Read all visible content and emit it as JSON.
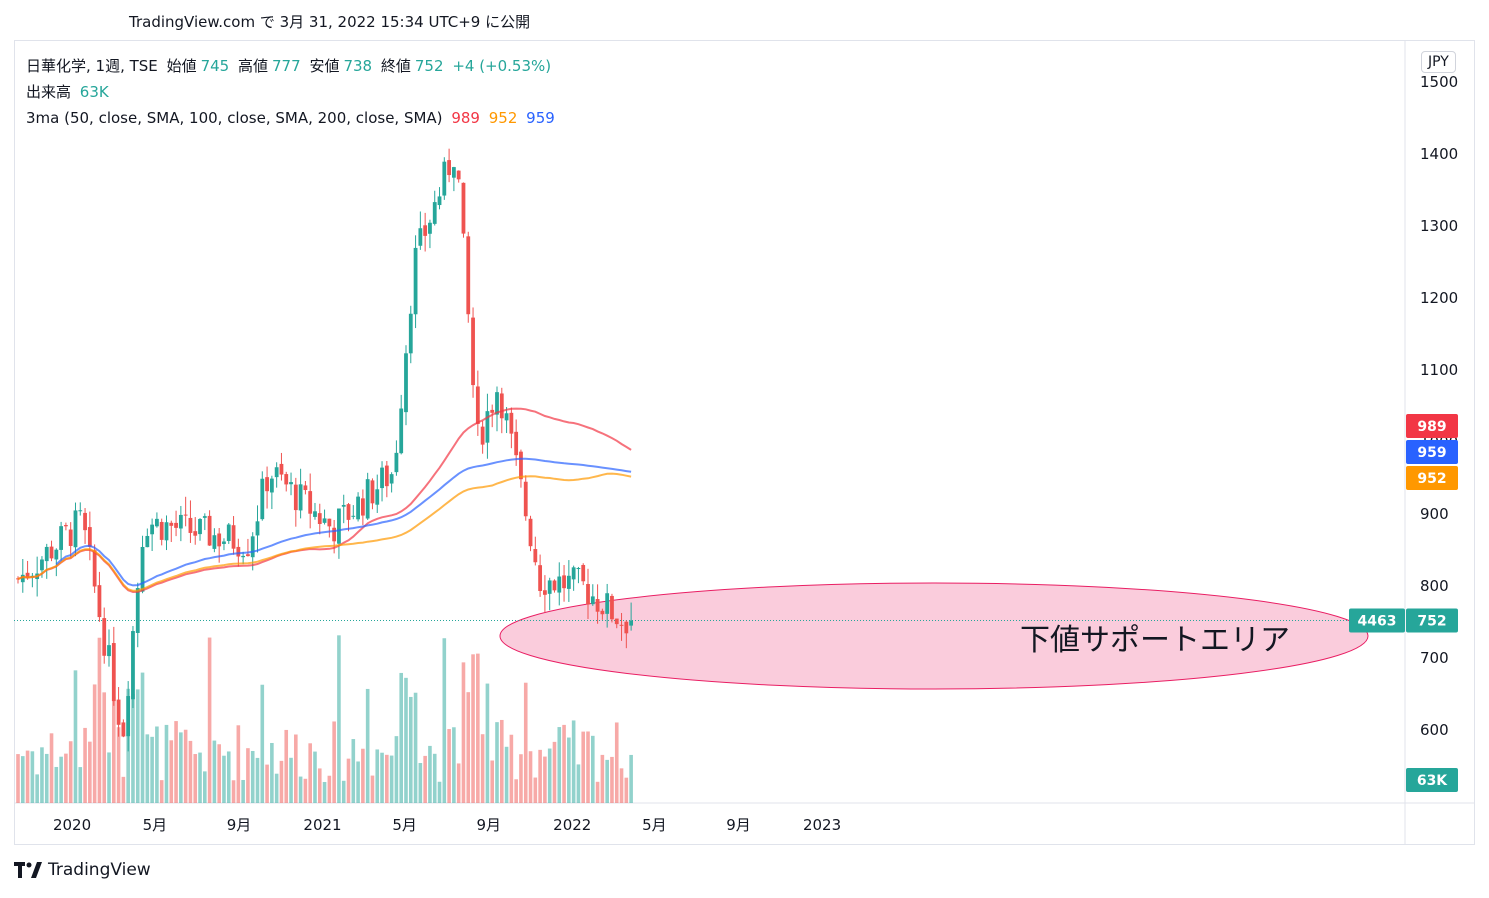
{
  "header": "TradingView.com で 3月 31, 2022 15:34 UTC+9 に公開",
  "legend": {
    "symbol": "日華化学, 1週, TSE",
    "open_label": "始値",
    "open": "745",
    "high_label": "高値",
    "high": "777",
    "low_label": "安値",
    "low": "738",
    "close_label": "終値",
    "close": "752",
    "change": "+4 (+0.53%)",
    "volume_label": "出来高",
    "volume": "63K",
    "ma_label": "3ma (50, close, SMA, 100, close, SMA, 200, close, SMA)",
    "ma50": "989",
    "ma100": "952",
    "ma200": "959"
  },
  "currency": "JPY",
  "annotation": "下値サポートエリア",
  "footer_logo": "TradingView",
  "colors": {
    "up": "#26a69a",
    "down": "#ef5350",
    "ma50": "#f23645",
    "ma100": "#ff9800",
    "ma200": "#2962ff",
    "zone": "#f8bbd0"
  },
  "chart_data": {
    "type": "candlestick",
    "ylim": [
      575,
      1510
    ],
    "y_ticks": [
      600,
      700,
      800,
      900,
      1000,
      1100,
      1200,
      1300,
      1400,
      1500
    ],
    "x_ticks": [
      "2020",
      "5月",
      "9月",
      "2021",
      "5月",
      "9月",
      "2022",
      "5月",
      "9月",
      "2023"
    ],
    "price_badges": [
      {
        "label": "989",
        "value": 989,
        "color": "#f23645"
      },
      {
        "label": "959",
        "value": 959,
        "color": "#2962ff"
      },
      {
        "label": "952",
        "value": 952,
        "color": "#ff9800"
      },
      {
        "label": "63K",
        "value": 0,
        "color": "#26a69a"
      }
    ],
    "last_price": {
      "label": "752",
      "value": 752,
      "count": "4463"
    },
    "key_points": [
      {
        "date": "2019-10",
        "close": 810
      },
      {
        "date": "2020-01",
        "close": 890
      },
      {
        "date": "2020-03",
        "close": 595
      },
      {
        "date": "2020-04",
        "close": 890
      },
      {
        "date": "2020-09",
        "close": 860
      },
      {
        "date": "2020-10",
        "close": 960
      },
      {
        "date": "2021-01",
        "close": 880
      },
      {
        "date": "2021-04",
        "close": 960
      },
      {
        "date": "2021-05",
        "close": 1250
      },
      {
        "date": "2021-07",
        "close": 1410
      },
      {
        "date": "2021-08",
        "close": 1000
      },
      {
        "date": "2021-09",
        "close": 1080
      },
      {
        "date": "2021-11",
        "close": 810
      },
      {
        "date": "2022-01",
        "close": 800
      },
      {
        "date": "2022-03",
        "close": 752
      }
    ]
  }
}
